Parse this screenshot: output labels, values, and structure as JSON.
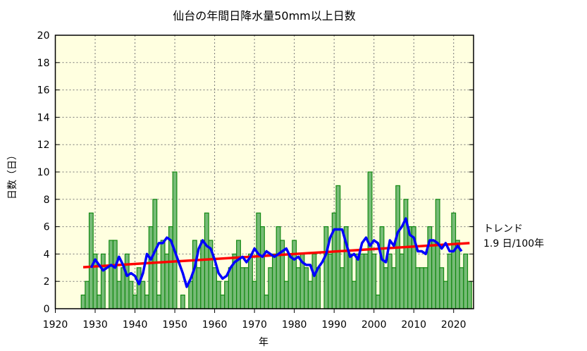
{
  "chart_data": {
    "type": "bar",
    "title": "仙台の年間日降水量50mm以上日数",
    "xlabel": "年",
    "ylabel": "日数（日）",
    "xlim": [
      1920,
      2025
    ],
    "ylim": [
      0,
      20
    ],
    "xticks": [
      1920,
      1930,
      1940,
      1950,
      1960,
      1970,
      1980,
      1990,
      2000,
      2010,
      2020
    ],
    "yticks": [
      0,
      2,
      4,
      6,
      8,
      10,
      12,
      14,
      16,
      18,
      20
    ],
    "grid": true,
    "x": [
      1927,
      1928,
      1929,
      1930,
      1931,
      1932,
      1933,
      1934,
      1935,
      1936,
      1937,
      1938,
      1939,
      1940,
      1941,
      1942,
      1943,
      1944,
      1945,
      1946,
      1947,
      1948,
      1949,
      1950,
      1951,
      1952,
      1953,
      1954,
      1955,
      1956,
      1957,
      1958,
      1959,
      1960,
      1961,
      1962,
      1963,
      1964,
      1965,
      1966,
      1967,
      1968,
      1969,
      1970,
      1971,
      1972,
      1973,
      1974,
      1975,
      1976,
      1977,
      1978,
      1979,
      1980,
      1981,
      1982,
      1983,
      1984,
      1985,
      1986,
      1987,
      1988,
      1989,
      1990,
      1991,
      1992,
      1993,
      1994,
      1995,
      1996,
      1997,
      1998,
      1999,
      2000,
      2001,
      2002,
      2003,
      2004,
      2005,
      2006,
      2007,
      2008,
      2009,
      2010,
      2011,
      2012,
      2013,
      2014,
      2015,
      2016,
      2017,
      2018,
      2019,
      2020,
      2021,
      2022,
      2023,
      2024
    ],
    "values": [
      1,
      2,
      7,
      4,
      1,
      4,
      0,
      5,
      5,
      2,
      3,
      4,
      2,
      1,
      3,
      2,
      1,
      6,
      8,
      1,
      5,
      4,
      6,
      10,
      0,
      1,
      0,
      2,
      5,
      3,
      5,
      7,
      5,
      3,
      2,
      1,
      2,
      3,
      4,
      5,
      3,
      3,
      4,
      2,
      7,
      6,
      1,
      3,
      4,
      6,
      5,
      2,
      4,
      5,
      3,
      4,
      3,
      2,
      4,
      3,
      0,
      6,
      4,
      7,
      9,
      3,
      6,
      4,
      2,
      4,
      4,
      4,
      10,
      4,
      1,
      6,
      3,
      4,
      3,
      9,
      4,
      8,
      6,
      6,
      3,
      3,
      3,
      6,
      5,
      8,
      3,
      2,
      4,
      7,
      5,
      3,
      4,
      2
    ],
    "running_mean_window": 5,
    "trend": {
      "label": "トレンド",
      "value_text": "1.9 日/100年"
    },
    "colors": {
      "background": "#ffffe0",
      "bar_fill": "#77bb77",
      "bar_edge": "#118811",
      "running_mean": "#0000ff",
      "trend": "#ff0000"
    }
  }
}
